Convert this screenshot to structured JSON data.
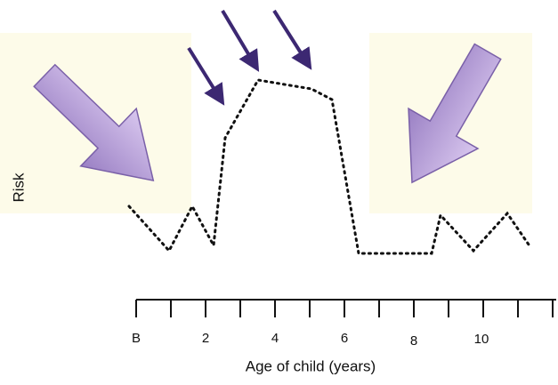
{
  "y_axis_label": "Risk",
  "x_axis_label": "Age of child (years)",
  "x_tick_labels": [
    "B",
    "2",
    "4",
    "6",
    "8",
    "10"
  ]
}
